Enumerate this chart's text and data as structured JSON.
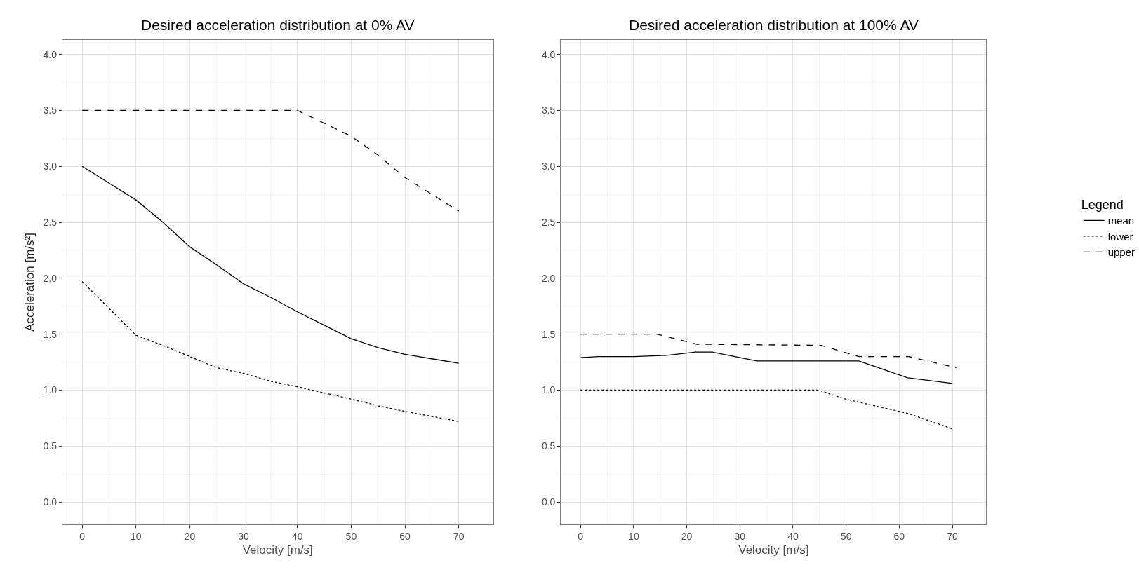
{
  "chart_data": [
    {
      "type": "line",
      "title": "Desired acceleration distribution at 0% AV",
      "xlabel": "Velocity [m/s]",
      "ylabel": "Acceleration [m/s²]",
      "xlim": [
        -3.7,
        76.4
      ],
      "ylim": [
        -0.2,
        4.13
      ],
      "xticks": [
        0,
        10,
        20,
        30,
        40,
        50,
        60,
        70
      ],
      "yticks": [
        {
          "value": 0,
          "label": "0.0"
        },
        0.5,
        {
          "value": 1,
          "label": "1.0"
        },
        1.5,
        {
          "value": 2,
          "label": "2.0"
        },
        2.5,
        {
          "value": 3,
          "label": "3.0"
        },
        3.5,
        {
          "value": 4,
          "label": "4.0"
        }
      ],
      "grid": true,
      "legend": "right",
      "series": [
        {
          "name": "mean",
          "color": "#000000",
          "line_style": "solid",
          "x": [
            0,
            5,
            10,
            15,
            20,
            25,
            30,
            35,
            40,
            45,
            50,
            55,
            60,
            65,
            70
          ],
          "values": [
            3.0,
            2.85,
            2.7,
            2.5,
            2.28,
            2.12,
            1.95,
            1.83,
            1.7,
            1.58,
            1.46,
            1.38,
            1.32,
            1.28,
            1.24
          ]
        },
        {
          "name": "lower",
          "color": "#000000",
          "line_style": "dotted",
          "x": [
            0,
            10,
            15,
            20,
            25,
            30,
            35,
            40,
            50,
            55,
            60,
            70
          ],
          "values": [
            1.97,
            1.49,
            1.4,
            1.3,
            1.2,
            1.15,
            1.08,
            1.03,
            0.92,
            0.86,
            0.81,
            0.72
          ]
        },
        {
          "name": "upper",
          "color": "#000000",
          "line_style": "dashed",
          "x": [
            0,
            40,
            50,
            55,
            60,
            65,
            70
          ],
          "values": [
            3.5,
            3.5,
            3.27,
            3.1,
            2.9,
            2.75,
            2.6
          ]
        }
      ]
    },
    {
      "type": "line",
      "title": "Desired acceleration distribution at 100% AV",
      "xlabel": "Velocity [m/s]",
      "legend_title": "Legend",
      "xlim": [
        -3.7,
        76.4
      ],
      "ylim": [
        -0.2,
        4.13
      ],
      "xticks": [
        0,
        10,
        20,
        30,
        40,
        50,
        60,
        70
      ],
      "yticks": [
        {
          "value": 0,
          "label": "0.0"
        },
        0.5,
        {
          "value": 1,
          "label": "1.0"
        },
        1.5,
        {
          "value": 2,
          "label": "2.0"
        },
        2.5,
        {
          "value": 3,
          "label": "3.0"
        },
        3.5,
        {
          "value": 4,
          "label": "4.0"
        }
      ],
      "grid": true,
      "legend": "right",
      "series": [
        {
          "color": "#000000",
          "line_style": "solid",
          "x": [
            0,
            3.3,
            10,
            16.2,
            21.7,
            24.8,
            33.2,
            52.4,
            61.6,
            70
          ],
          "values": [
            1.29,
            1.3,
            1.3,
            1.31,
            1.34,
            1.34,
            1.26,
            1.26,
            1.11,
            1.06
          ]
        },
        {
          "color": "#000000",
          "line_style": "dotted",
          "x": [
            0,
            44.8,
            49.9,
            61.8,
            70.2
          ],
          "values": [
            1.0,
            1.0,
            0.92,
            0.79,
            0.65
          ]
        },
        {
          "color": "#000000",
          "line_style": "dashed",
          "x": [
            0,
            14.4,
            21.9,
            45.3,
            52.4,
            61.8,
            70.7
          ],
          "values": [
            1.5,
            1.5,
            1.41,
            1.4,
            1.3,
            1.3,
            1.2
          ]
        }
      ]
    }
  ]
}
